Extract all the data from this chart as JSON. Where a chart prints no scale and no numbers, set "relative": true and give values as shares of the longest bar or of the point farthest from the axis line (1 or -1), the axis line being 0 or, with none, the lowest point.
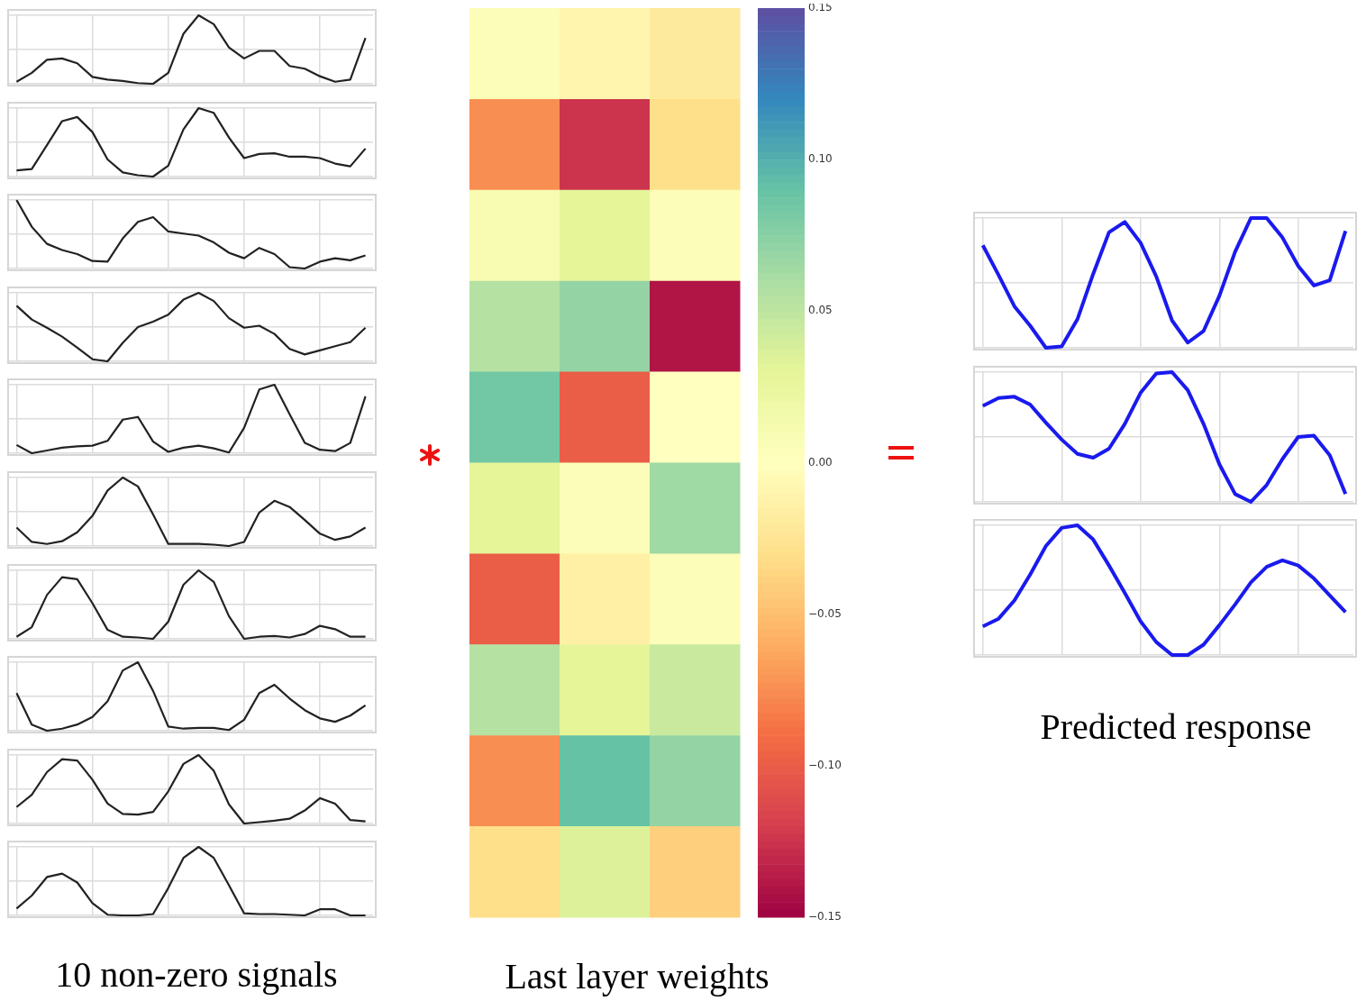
{
  "chart_data": [
    {
      "type": "line",
      "relative": true,
      "grid": true,
      "marker": "none",
      "categories": [
        null,
        null,
        null,
        null,
        null,
        null,
        null,
        null,
        null,
        null,
        null,
        null,
        null,
        null,
        null,
        null,
        null,
        null,
        null,
        null,
        null,
        null,
        null,
        null
      ],
      "series": [
        {
          "color": "#222222",
          "values": [
            0.03,
            0.16,
            0.35,
            0.37,
            0.3,
            0.1,
            0.06,
            0.04,
            0.01,
            0,
            0.16,
            0.73,
            1,
            0.87,
            0.53,
            0.37,
            0.48,
            0.48,
            0.26,
            0.22,
            0.11,
            0.03,
            0.06,
            0.67
          ]
        }
      ]
    },
    {
      "type": "line",
      "relative": true,
      "grid": true,
      "marker": "none",
      "categories": [
        null,
        null,
        null,
        null,
        null,
        null,
        null,
        null,
        null,
        null,
        null,
        null,
        null,
        null,
        null,
        null,
        null,
        null,
        null,
        null,
        null,
        null,
        null,
        null
      ],
      "series": [
        {
          "color": "#222222",
          "values": [
            0.09,
            0.11,
            0.46,
            0.81,
            0.87,
            0.65,
            0.25,
            0.06,
            0.02,
            0,
            0.16,
            0.69,
            1,
            0.93,
            0.57,
            0.27,
            0.33,
            0.34,
            0.29,
            0.29,
            0.27,
            0.19,
            0.15,
            0.41
          ]
        }
      ]
    },
    {
      "type": "line",
      "relative": true,
      "grid": true,
      "marker": "none",
      "categories": [
        null,
        null,
        null,
        null,
        null,
        null,
        null,
        null,
        null,
        null,
        null,
        null,
        null,
        null,
        null,
        null,
        null,
        null,
        null,
        null,
        null,
        null,
        null,
        null
      ],
      "series": [
        {
          "color": "#222222",
          "values": [
            1,
            0.61,
            0.36,
            0.27,
            0.21,
            0.11,
            0.1,
            0.44,
            0.68,
            0.75,
            0.54,
            0.51,
            0.48,
            0.38,
            0.23,
            0.15,
            0.3,
            0.21,
            0.02,
            0,
            0.1,
            0.15,
            0.12,
            0.19
          ]
        }
      ]
    },
    {
      "type": "line",
      "relative": true,
      "grid": true,
      "marker": "none",
      "categories": [
        null,
        null,
        null,
        null,
        null,
        null,
        null,
        null,
        null,
        null,
        null,
        null,
        null,
        null,
        null,
        null,
        null,
        null,
        null,
        null,
        null,
        null,
        null,
        null
      ],
      "series": [
        {
          "color": "#222222",
          "values": [
            0.81,
            0.61,
            0.49,
            0.36,
            0.2,
            0.03,
            0,
            0.27,
            0.5,
            0.58,
            0.68,
            0.9,
            1,
            0.88,
            0.63,
            0.49,
            0.52,
            0.4,
            0.18,
            0.1,
            0.16,
            0.22,
            0.28,
            0.49
          ]
        }
      ]
    },
    {
      "type": "line",
      "relative": true,
      "grid": true,
      "marker": "none",
      "categories": [
        null,
        null,
        null,
        null,
        null,
        null,
        null,
        null,
        null,
        null,
        null,
        null,
        null,
        null,
        null,
        null,
        null,
        null,
        null,
        null,
        null,
        null,
        null,
        null
      ],
      "series": [
        {
          "color": "#222222",
          "values": [
            0.12,
            0,
            0.04,
            0.08,
            0.1,
            0.11,
            0.18,
            0.49,
            0.53,
            0.17,
            0.02,
            0.08,
            0.11,
            0.07,
            0.01,
            0.37,
            0.93,
            1,
            0.57,
            0.15,
            0.05,
            0.03,
            0.15,
            0.83
          ]
        }
      ]
    },
    {
      "type": "line",
      "relative": true,
      "grid": true,
      "marker": "none",
      "categories": [
        null,
        null,
        null,
        null,
        null,
        null,
        null,
        null,
        null,
        null,
        null,
        null,
        null,
        null,
        null,
        null,
        null,
        null,
        null,
        null,
        null,
        null,
        null,
        null
      ],
      "series": [
        {
          "color": "#222222",
          "values": [
            0.27,
            0.06,
            0.03,
            0.07,
            0.2,
            0.44,
            0.81,
            1,
            0.87,
            0.46,
            0.03,
            0.03,
            0.03,
            0.02,
            0,
            0.06,
            0.49,
            0.66,
            0.57,
            0.38,
            0.18,
            0.09,
            0.14,
            0.27
          ]
        }
      ]
    },
    {
      "type": "line",
      "relative": true,
      "grid": true,
      "marker": "none",
      "categories": [
        null,
        null,
        null,
        null,
        null,
        null,
        null,
        null,
        null,
        null,
        null,
        null,
        null,
        null,
        null,
        null,
        null,
        null,
        null,
        null,
        null,
        null,
        null,
        null
      ],
      "series": [
        {
          "color": "#222222",
          "values": [
            0.03,
            0.17,
            0.64,
            0.9,
            0.87,
            0.52,
            0.13,
            0.03,
            0.02,
            0,
            0.25,
            0.79,
            1,
            0.83,
            0.33,
            0,
            0.03,
            0.04,
            0.02,
            0.07,
            0.19,
            0.14,
            0.03,
            0.03
          ]
        }
      ]
    },
    {
      "type": "line",
      "relative": true,
      "grid": true,
      "marker": "none",
      "categories": [
        null,
        null,
        null,
        null,
        null,
        null,
        null,
        null,
        null,
        null,
        null,
        null,
        null,
        null,
        null,
        null,
        null,
        null,
        null,
        null,
        null,
        null,
        null,
        null
      ],
      "series": [
        {
          "color": "#222222",
          "values": [
            0.55,
            0.09,
            0,
            0.03,
            0.09,
            0.2,
            0.43,
            0.88,
            1,
            0.58,
            0.06,
            0.03,
            0.04,
            0.04,
            0.01,
            0.16,
            0.55,
            0.67,
            0.47,
            0.3,
            0.18,
            0.13,
            0.22,
            0.37
          ]
        }
      ]
    },
    {
      "type": "line",
      "relative": true,
      "grid": true,
      "marker": "none",
      "categories": [
        null,
        null,
        null,
        null,
        null,
        null,
        null,
        null,
        null,
        null,
        null,
        null,
        null,
        null,
        null,
        null,
        null,
        null,
        null,
        null,
        null,
        null,
        null,
        null
      ],
      "series": [
        {
          "color": "#222222",
          "values": [
            0.24,
            0.42,
            0.75,
            0.94,
            0.92,
            0.64,
            0.29,
            0.14,
            0.13,
            0.17,
            0.47,
            0.87,
            1,
            0.77,
            0.28,
            0,
            0.02,
            0.04,
            0.07,
            0.19,
            0.37,
            0.29,
            0.05,
            0.03
          ]
        }
      ]
    },
    {
      "type": "line",
      "relative": true,
      "grid": true,
      "marker": "none",
      "xlabel": "10 non-zero signals",
      "categories": [
        null,
        null,
        null,
        null,
        null,
        null,
        null,
        null,
        null,
        null,
        null,
        null,
        null,
        null,
        null,
        null,
        null,
        null,
        null,
        null,
        null,
        null,
        null,
        null
      ],
      "series": [
        {
          "color": "#222222",
          "values": [
            0.1,
            0.29,
            0.56,
            0.61,
            0.48,
            0.18,
            0.01,
            0,
            0,
            0.02,
            0.4,
            0.84,
            1,
            0.84,
            0.44,
            0.03,
            0.02,
            0.02,
            0.01,
            0,
            0.09,
            0.09,
            0,
            0
          ]
        }
      ]
    },
    {
      "type": "heatmap",
      "xlabel": "Last layer weights",
      "categories": [
        null,
        null,
        null
      ],
      "y_categories": [
        null,
        null,
        null,
        null,
        null,
        null,
        null,
        null,
        null,
        null
      ],
      "cells": [
        [
          0.005,
          -0.01,
          -0.02
        ],
        [
          -0.075,
          -0.125,
          -0.03
        ],
        [
          0.01,
          0.03,
          0.005
        ],
        [
          0.055,
          0.07,
          -0.14
        ],
        [
          0.085,
          -0.1,
          0.0
        ],
        [
          0.03,
          0.005,
          0.065
        ],
        [
          -0.1,
          -0.015,
          0.005
        ],
        [
          0.055,
          0.03,
          0.045
        ],
        [
          -0.075,
          0.09,
          0.07
        ],
        [
          -0.03,
          0.035,
          -0.04
        ]
      ],
      "clim": [
        -0.15,
        0.15
      ],
      "cticks": [
        {
          "value": 0.15,
          "label": "0.15"
        },
        {
          "value": 0.1,
          "label": "0.10"
        },
        {
          "value": 0.05,
          "label": "0.05"
        },
        {
          "value": 0,
          "label": "0.00"
        },
        {
          "value": -0.05,
          "label": "−0.05"
        },
        {
          "value": -0.1,
          "label": "−0.10"
        },
        {
          "value": -0.15,
          "label": "−0.15"
        }
      ]
    },
    {
      "type": "line",
      "relative": true,
      "grid": true,
      "marker": "none",
      "categories": [
        null,
        null,
        null,
        null,
        null,
        null,
        null,
        null,
        null,
        null,
        null,
        null,
        null,
        null,
        null,
        null,
        null,
        null,
        null,
        null,
        null,
        null,
        null,
        null
      ],
      "series": [
        {
          "color": "#1a1aee",
          "values": [
            0.79,
            0.56,
            0.32,
            0.17,
            0,
            0.01,
            0.22,
            0.57,
            0.89,
            0.97,
            0.81,
            0.55,
            0.21,
            0.04,
            0.13,
            0.4,
            0.74,
            1,
            1,
            0.85,
            0.63,
            0.48,
            0.52,
            0.9
          ]
        }
      ]
    },
    {
      "type": "line",
      "relative": true,
      "grid": true,
      "marker": "none",
      "categories": [
        null,
        null,
        null,
        null,
        null,
        null,
        null,
        null,
        null,
        null,
        null,
        null,
        null,
        null,
        null,
        null,
        null,
        null,
        null,
        null,
        null,
        null,
        null,
        null
      ],
      "series": [
        {
          "color": "#1a1aee",
          "values": [
            0.74,
            0.8,
            0.81,
            0.75,
            0.61,
            0.48,
            0.37,
            0.34,
            0.41,
            0.6,
            0.84,
            0.99,
            1,
            0.86,
            0.6,
            0.29,
            0.06,
            0,
            0.13,
            0.33,
            0.5,
            0.51,
            0.36,
            0.06
          ]
        }
      ]
    },
    {
      "type": "line",
      "relative": true,
      "grid": true,
      "marker": "none",
      "xlabel": "Predicted response",
      "categories": [
        null,
        null,
        null,
        null,
        null,
        null,
        null,
        null,
        null,
        null,
        null,
        null,
        null,
        null,
        null,
        null,
        null,
        null,
        null,
        null,
        null,
        null,
        null,
        null
      ],
      "series": [
        {
          "color": "#1a1aee",
          "values": [
            0.22,
            0.28,
            0.42,
            0.62,
            0.84,
            0.98,
            1,
            0.89,
            0.69,
            0.48,
            0.26,
            0.1,
            0,
            0,
            0.08,
            0.23,
            0.39,
            0.56,
            0.68,
            0.73,
            0.69,
            0.59,
            0.46,
            0.33
          ]
        }
      ]
    }
  ]
}
